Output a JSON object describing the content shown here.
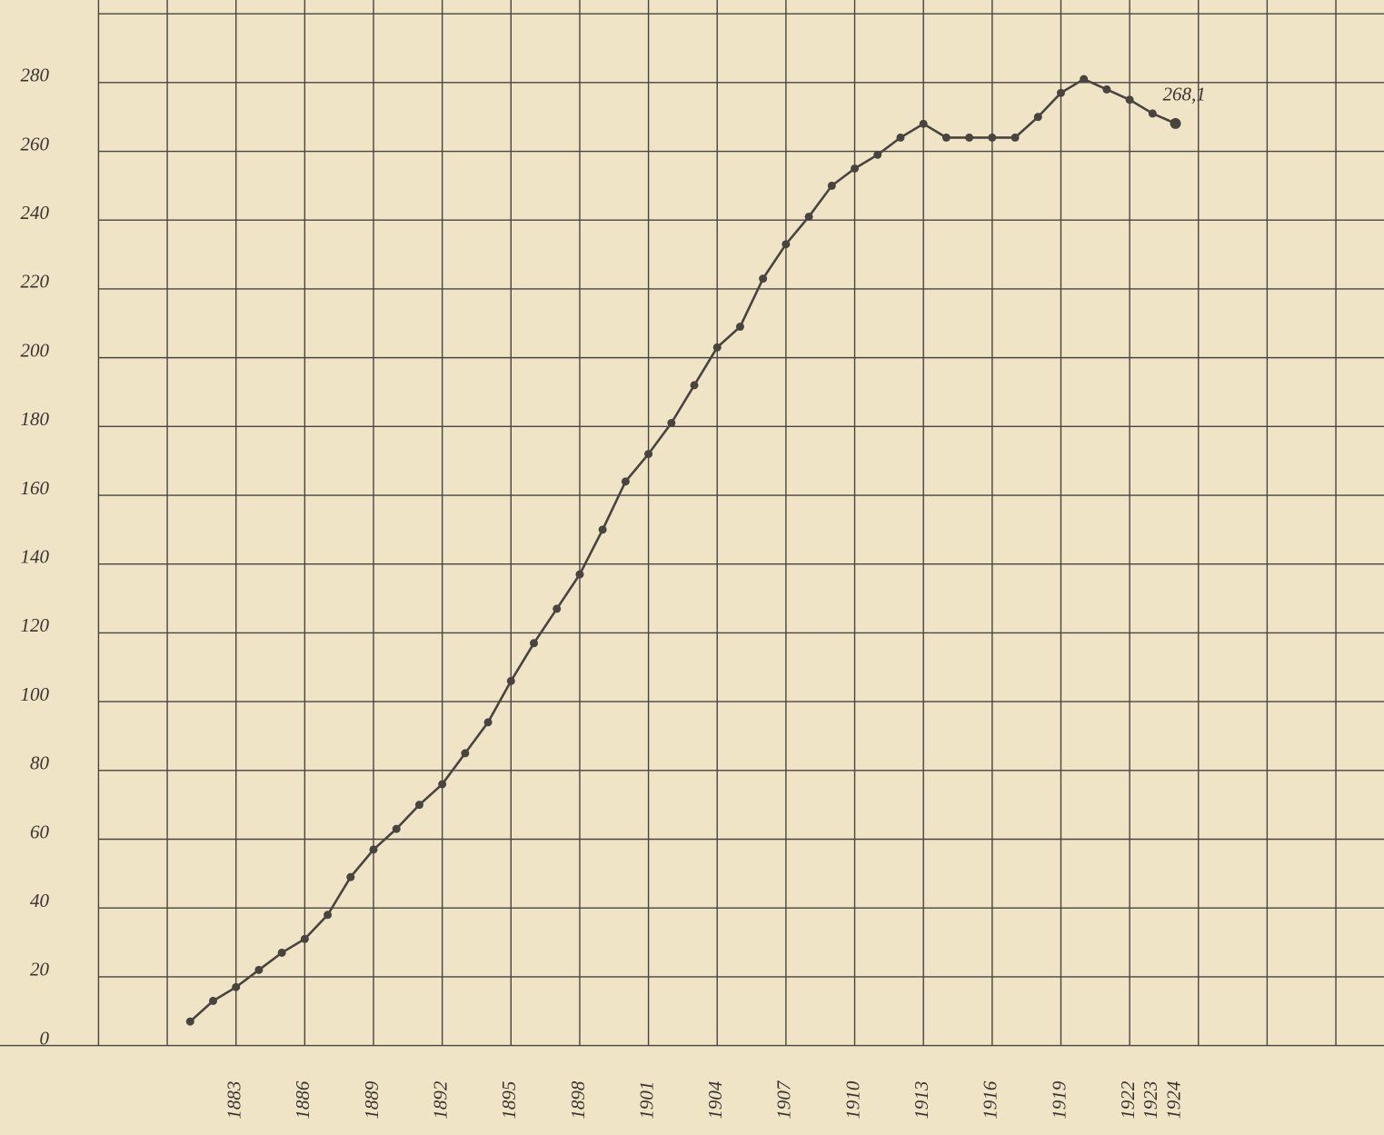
{
  "chart_data": {
    "type": "line",
    "x": [
      1881,
      1882,
      1883,
      1884,
      1885,
      1886,
      1887,
      1888,
      1889,
      1890,
      1891,
      1892,
      1893,
      1894,
      1895,
      1896,
      1897,
      1898,
      1899,
      1900,
      1901,
      1902,
      1903,
      1904,
      1905,
      1906,
      1907,
      1908,
      1909,
      1910,
      1911,
      1912,
      1913,
      1914,
      1915,
      1916,
      1917,
      1918,
      1919,
      1920,
      1921,
      1922,
      1923,
      1924
    ],
    "series": [
      {
        "color": "#4a4440",
        "values": [
          7,
          13,
          17,
          22,
          27,
          31,
          38,
          49,
          57,
          63,
          70,
          76,
          85,
          94,
          106,
          117,
          127,
          137,
          150,
          164,
          172,
          181,
          192,
          203,
          209,
          223,
          233,
          241,
          250,
          255,
          259,
          264,
          268,
          264,
          264,
          264,
          264,
          270,
          277,
          281,
          278,
          275,
          271,
          268.1
        ],
        "value_labels": [
          null,
          null,
          null,
          null,
          null,
          null,
          null,
          null,
          null,
          null,
          null,
          null,
          null,
          null,
          null,
          null,
          null,
          null,
          null,
          null,
          null,
          null,
          null,
          null,
          null,
          null,
          null,
          null,
          null,
          null,
          null,
          null,
          null,
          null,
          null,
          null,
          null,
          null,
          null,
          null,
          null,
          null,
          null,
          "268,1"
        ]
      }
    ],
    "xlim": [
      1872.7,
      1933.1
    ],
    "ylim": [
      -26,
      304
    ],
    "xticks": [
      1883,
      1886,
      1889,
      1892,
      1895,
      1898,
      1901,
      1904,
      1907,
      1910,
      1913,
      1916,
      1919,
      1922,
      1923,
      1924
    ],
    "yticks": [
      0,
      20,
      40,
      60,
      80,
      100,
      120,
      140,
      160,
      180,
      200,
      220,
      240,
      260,
      280
    ],
    "xgrid": [
      1877,
      1880,
      1883,
      1886,
      1889,
      1892,
      1895,
      1898,
      1901,
      1904,
      1907,
      1910,
      1913,
      1916,
      1919,
      1922,
      1925,
      1928,
      1931
    ],
    "ygrid": [
      0,
      20,
      40,
      60,
      80,
      100,
      120,
      140,
      160,
      180,
      200,
      220,
      240,
      260,
      280,
      300
    ],
    "grid": true
  }
}
